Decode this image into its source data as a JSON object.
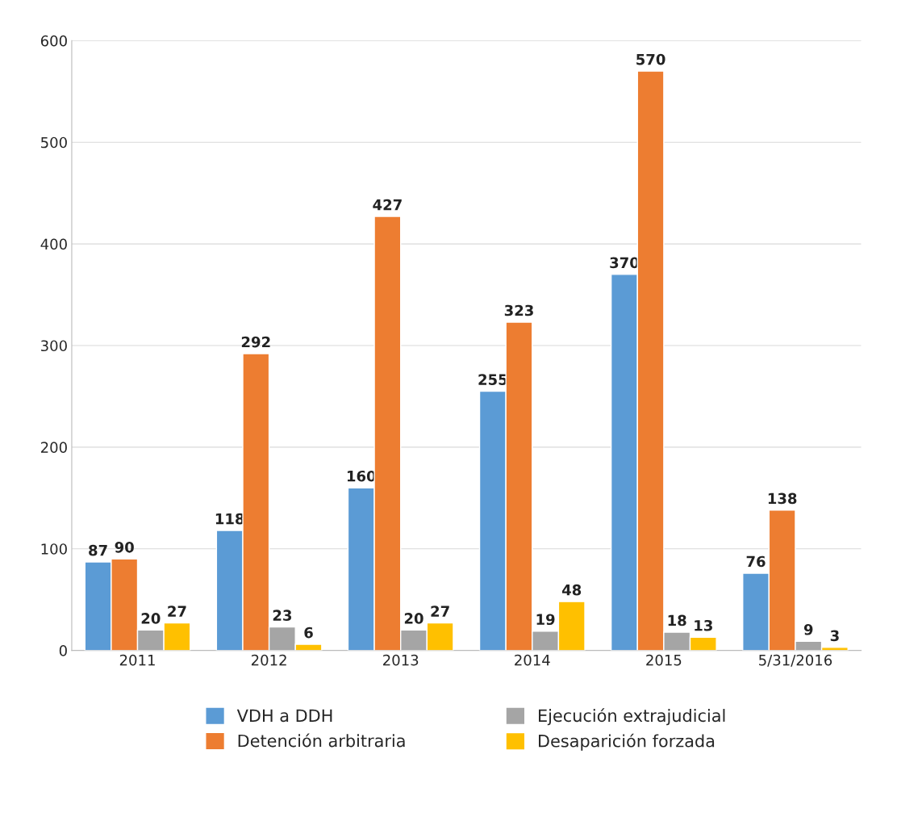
{
  "chart_data": {
    "type": "bar",
    "categories": [
      "2011",
      "2012",
      "2013",
      "2014",
      "2015",
      "5/31/2016"
    ],
    "series": [
      {
        "name": "VDH a DDH",
        "color": "#5b9bd5",
        "values": [
          87,
          118,
          160,
          255,
          370,
          76
        ]
      },
      {
        "name": "Detención arbitraria",
        "color": "#ed7d31",
        "values": [
          90,
          292,
          427,
          323,
          570,
          138
        ]
      },
      {
        "name": "Ejecución extrajudicial",
        "color": "#a5a5a5",
        "values": [
          20,
          23,
          20,
          19,
          18,
          9
        ]
      },
      {
        "name": "Desaparición forzada",
        "color": "#ffc000",
        "values": [
          27,
          6,
          27,
          48,
          13,
          3
        ]
      }
    ],
    "ylim": [
      0,
      600
    ],
    "yticks": [
      0,
      100,
      200,
      300,
      400,
      500,
      600
    ],
    "grid": "y",
    "legend": "bottom",
    "data_labels": true
  }
}
